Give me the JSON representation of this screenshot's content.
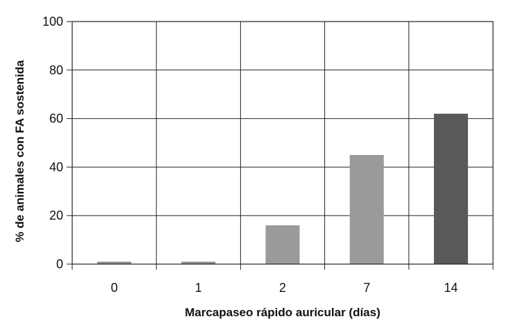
{
  "chart_data": {
    "type": "bar",
    "title": "",
    "xlabel": "Marcapaseo rápido auricular (días)",
    "ylabel": "% de animales con FA sostenida",
    "categories": [
      "0",
      "1",
      "2",
      "7",
      "14"
    ],
    "values": [
      1,
      1,
      16,
      45,
      62
    ],
    "ylim": [
      0,
      100
    ],
    "yticks": [
      "0",
      "20",
      "40",
      "60",
      "80",
      "100"
    ],
    "grid": true,
    "legend": "none",
    "bar_colors": [
      "#8e8e8e",
      "#8e8e8e",
      "#999a9c",
      "#999a9c",
      "#58595b"
    ]
  }
}
